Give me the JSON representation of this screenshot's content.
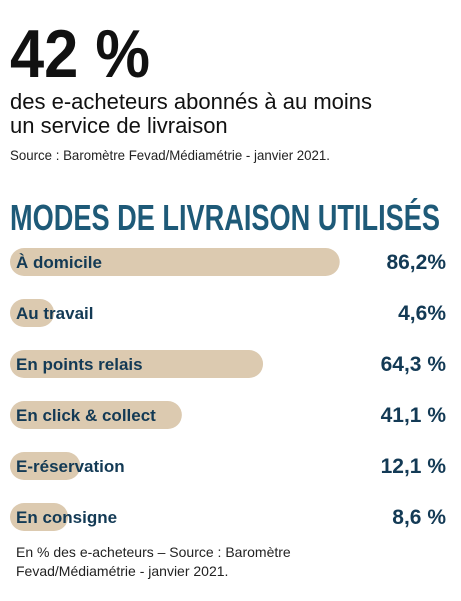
{
  "headline": "42 %",
  "subtitle": [
    "des e-acheteurs abonnés à au moins",
    "un service de livraison"
  ],
  "source": "Source : Baromètre Fevad/Médiamétrie - janvier 2021.",
  "chart_data": {
    "type": "bar",
    "orientation": "horizontal",
    "title": "MODES DE LIVRAISON UTILISÉS",
    "categories": [
      "À domicile",
      "Au travail",
      "En points relais",
      "En click & collect",
      "E-réservation",
      "En consigne"
    ],
    "values": [
      86.2,
      4.6,
      64.3,
      41.1,
      12.1,
      8.6
    ],
    "value_labels": [
      "86,2%",
      "4,6%",
      "64,3 %",
      "41,1 %",
      "12,1 %",
      "8,6 %"
    ],
    "color": "#dccab0"
  },
  "footnote": [
    "En % des e-acheteurs – Source : Baromètre",
    "Fevad/Médiamétrie - janvier 2021."
  ]
}
